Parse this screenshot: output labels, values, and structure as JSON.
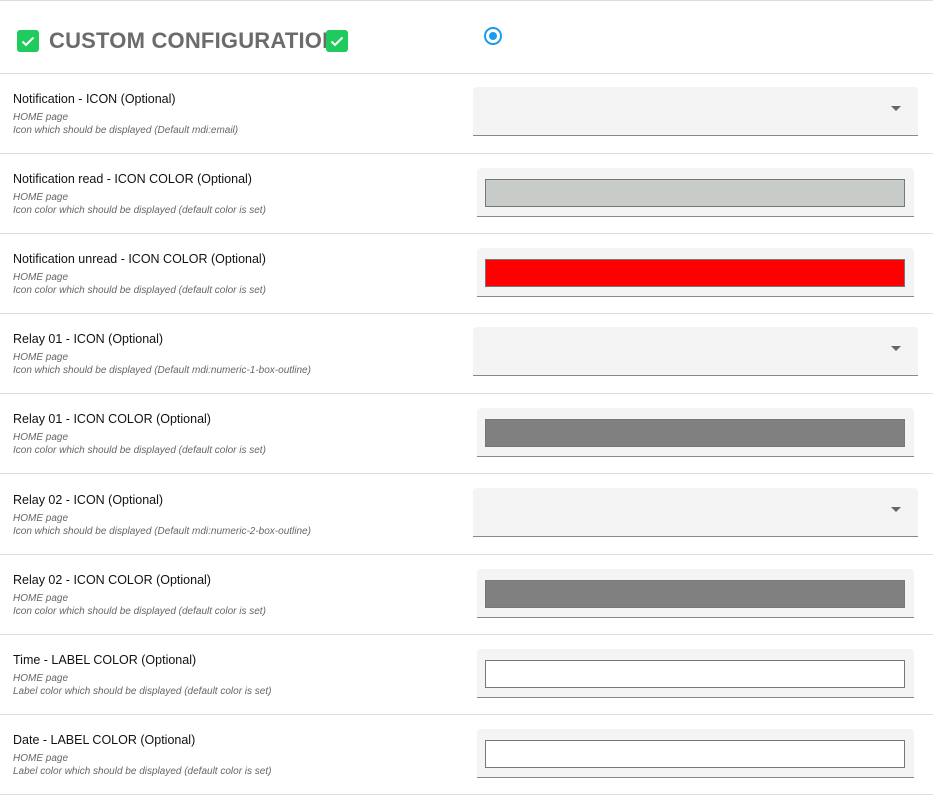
{
  "header": {
    "title": "CUSTOM CONFIGURATION",
    "radio_selected": true
  },
  "rows": [
    {
      "label": "Notification - ICON (Optional)",
      "page": "HOME page",
      "desc": "Icon which should be displayed (Default mdi:email)",
      "type": "select"
    },
    {
      "label": "Notification read - ICON COLOR (Optional)",
      "page": "HOME page",
      "desc": "Icon color which should be displayed (default color is set)",
      "type": "color",
      "color": "#c8ccc8"
    },
    {
      "label": "Notification unread - ICON COLOR (Optional)",
      "page": "HOME page",
      "desc": "Icon color which should be displayed (default color is set)",
      "type": "color",
      "color": "#ff0000"
    },
    {
      "label": "Relay 01 - ICON (Optional)",
      "page": "HOME page",
      "desc": "Icon which should be displayed (Default mdi:numeric-1-box-outline)",
      "type": "select"
    },
    {
      "label": "Relay 01 - ICON COLOR (Optional)",
      "page": "HOME page",
      "desc": "Icon color which should be displayed (default color is set)",
      "type": "color",
      "color": "#808080"
    },
    {
      "label": "Relay 02 - ICON (Optional)",
      "page": "HOME page",
      "desc": "Icon which should be displayed (Default mdi:numeric-2-box-outline)",
      "type": "select"
    },
    {
      "label": "Relay 02 - ICON COLOR (Optional)",
      "page": "HOME page",
      "desc": "Icon color which should be displayed (default color is set)",
      "type": "color",
      "color": "#808080"
    },
    {
      "label": "Time - LABEL COLOR (Optional)",
      "page": "HOME page",
      "desc": "Label color which should be displayed (default color is set)",
      "type": "color",
      "color": "#ffffff"
    },
    {
      "label": "Date - LABEL COLOR (Optional)",
      "page": "HOME page",
      "desc": "Label color which should be displayed (default color is set)",
      "type": "color",
      "color": "#ffffff"
    }
  ]
}
